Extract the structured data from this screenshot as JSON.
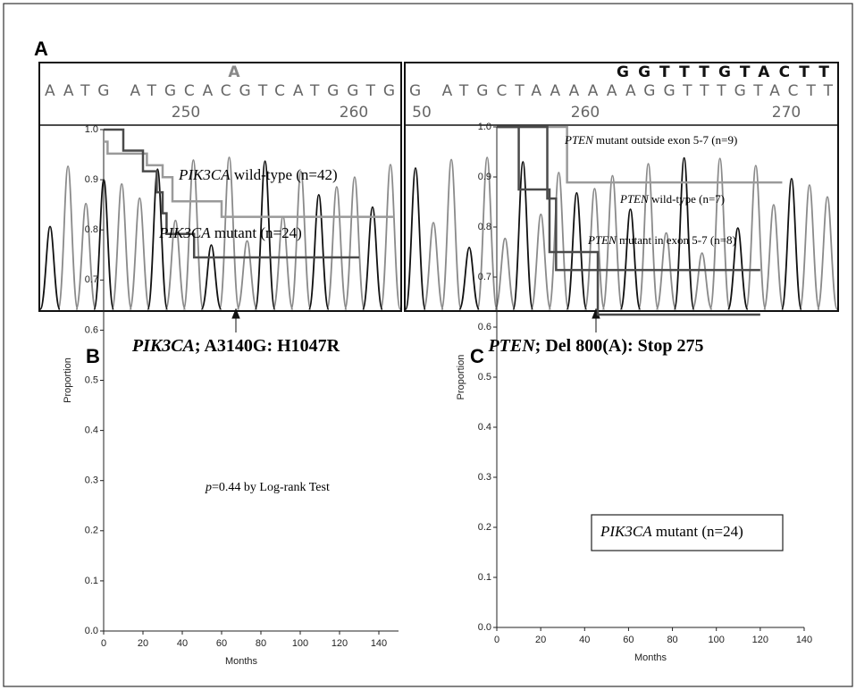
{
  "panel_a": {
    "label": "A",
    "left": {
      "mutant_base": "A",
      "sequence": "AATG ATGCACGTCATGGTG",
      "positions": [
        "250",
        "260"
      ],
      "gene": "PIK3CA",
      "caption": "; A3140G: H1047R"
    },
    "right": {
      "reference": "GGTTTGTACTT",
      "sequence": "G ATGCTAAAAAAGGTTTGTACTT",
      "positions": [
        "50",
        "260",
        "270"
      ],
      "gene": "PTEN",
      "caption": "; Del 800(A): Stop 275"
    }
  },
  "chart_data": [
    {
      "type": "step",
      "label": "B",
      "xlabel": "Months",
      "ylabel": "Proportion",
      "xlim": [
        0,
        150
      ],
      "xticks": [
        0,
        20,
        40,
        60,
        80,
        100,
        120,
        140
      ],
      "ylim": [
        0,
        1
      ],
      "yticks": [
        {
          "value": 0,
          "label": "0.0"
        },
        0.1,
        0.2,
        0.3,
        0.4,
        0.5,
        0.6,
        0.7,
        0.8,
        0.9,
        {
          "value": 1,
          "label": "1.0"
        }
      ],
      "series": [
        {
          "name": "PIK3CA wild-type (n=42)",
          "color": "#9a9a9a",
          "x": [
            0,
            2,
            22,
            30,
            35,
            60,
            148
          ],
          "values": [
            0.976,
            0.952,
            0.929,
            0.905,
            0.857,
            0.826,
            0.826
          ]
        },
        {
          "name": "PIK3CA mutant (n=24)",
          "color": "#4a4a4a",
          "x": [
            0,
            10,
            20,
            27,
            30,
            32,
            46,
            130
          ],
          "values": [
            1.0,
            0.958,
            0.917,
            0.875,
            0.833,
            0.792,
            0.745,
            0.745
          ]
        }
      ],
      "annotation": "p=0.44 by Log-rank Test"
    },
    {
      "type": "step",
      "label": "C",
      "xlabel": "Months",
      "ylabel": "Proportion",
      "xlim": [
        0,
        140
      ],
      "xticks": [
        0,
        20,
        40,
        60,
        80,
        100,
        120,
        140
      ],
      "ylim": [
        0,
        1
      ],
      "yticks": [
        {
          "value": 0,
          "label": "0.0"
        },
        0.1,
        0.2,
        0.3,
        0.4,
        0.5,
        0.6,
        0.7,
        0.8,
        0.9,
        {
          "value": 1,
          "label": "1.0"
        }
      ],
      "series": [
        {
          "name": "PTEN mutant outside exon 5-7 (n=9)",
          "color": "#9a9a9a",
          "x": [
            0,
            32,
            130
          ],
          "values": [
            1.0,
            0.889,
            0.889
          ]
        },
        {
          "name": "PTEN wild-type (n=7)",
          "color": "#4a4a4a",
          "x": [
            0,
            23,
            27,
            120
          ],
          "values": [
            1.0,
            0.857,
            0.714,
            0.714
          ]
        },
        {
          "name": "PTEN mutant in exon 5-7 (n=8)",
          "color": "#4a4a4a",
          "x": [
            0,
            10,
            24,
            28,
            46,
            120
          ],
          "values": [
            1.0,
            0.875,
            0.75,
            0.75,
            0.625,
            0.625
          ]
        }
      ],
      "annotation": "PIK3CA mutant (n=24)"
    }
  ]
}
